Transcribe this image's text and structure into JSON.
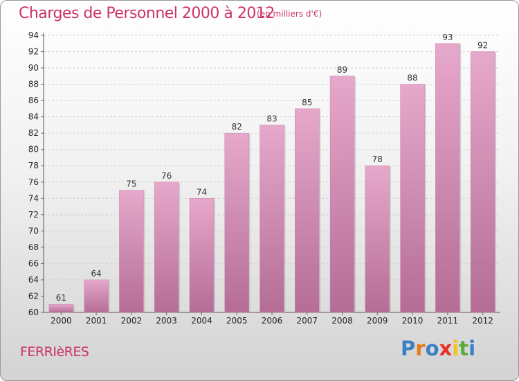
{
  "title": "Charges de Personnel 2000 à 2012",
  "subtitle": "(en milliers d'€)",
  "town": "FERRIèRES",
  "logo": {
    "text": "Proxiti",
    "letters": [
      "P",
      "r",
      "o",
      "x",
      "i",
      "t",
      "i"
    ],
    "colors": [
      "#3a7fc4",
      "#e87a1c",
      "#3a7fc4",
      "#e8302a",
      "#f0c419",
      "#5cab3c",
      "#3a7fc4"
    ]
  },
  "colors": {
    "bar": "#d98fb8",
    "title": "#cc3366"
  },
  "chart_data": {
    "type": "bar",
    "title": "Charges de Personnel 2000 à 2012",
    "subtitle": "(en milliers d'€)",
    "categories": [
      "2000",
      "2001",
      "2002",
      "2003",
      "2004",
      "2005",
      "2006",
      "2007",
      "2008",
      "2009",
      "2010",
      "2011",
      "2012"
    ],
    "values": [
      61,
      64,
      75,
      76,
      74,
      82,
      83,
      85,
      89,
      78,
      88,
      93,
      92
    ],
    "xlabel": "",
    "ylabel": "",
    "ylim": [
      60,
      94
    ],
    "yticks": [
      60,
      62,
      64,
      66,
      68,
      70,
      72,
      74,
      76,
      78,
      80,
      82,
      84,
      86,
      88,
      90,
      92,
      94
    ],
    "grid": true,
    "legend": "none"
  }
}
